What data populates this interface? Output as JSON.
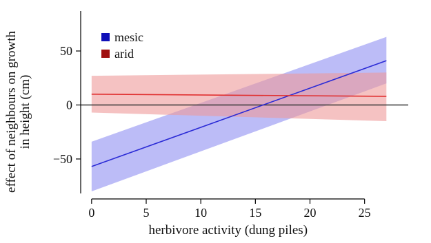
{
  "chart_data": {
    "type": "line",
    "title": "",
    "xlabel": "herbivore activity (dung piles)",
    "ylabel_lines": [
      "effect of neighbours on growth",
      "in height (cm)"
    ],
    "xlim": [
      -1,
      29
    ],
    "ylim": [
      -87,
      87
    ],
    "xticks": [
      0,
      5,
      10,
      15,
      20,
      25
    ],
    "yticks": [
      -50,
      0,
      50
    ],
    "reference_line": {
      "y": 0,
      "color": "#333333"
    },
    "grid": false,
    "legend_position": "top-left",
    "series": [
      {
        "name": "mesic",
        "color": "#2b2bd6",
        "band_color": "#8f8ff2",
        "x": [
          0,
          27
        ],
        "y": [
          -57,
          41
        ],
        "ci_lower": [
          -80,
          20
        ],
        "ci_upper": [
          -34,
          63
        ]
      },
      {
        "name": "arid",
        "color": "#e03030",
        "band_color": "#ef9a9a",
        "x": [
          0,
          27
        ],
        "y": [
          10,
          8
        ],
        "ci_lower": [
          -7,
          -15
        ],
        "ci_upper": [
          27,
          30
        ]
      }
    ]
  }
}
